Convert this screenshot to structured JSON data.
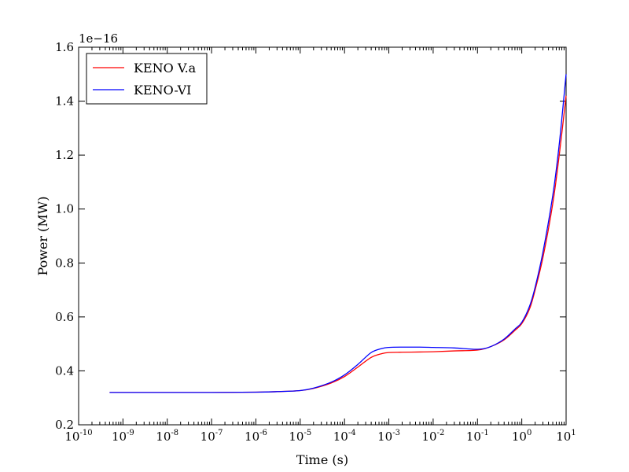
{
  "chart_data": {
    "type": "line",
    "xlabel": "Time (s)",
    "ylabel": "Power (MW)",
    "offset_label": "1e−16",
    "x_scale": "log",
    "xlim": [
      1e-10,
      10
    ],
    "ylim": [
      0.2,
      1.6
    ],
    "y_multiplier": 1e-16,
    "grid": false,
    "legend_position": "upper-left",
    "x_ticks": [
      {
        "value": 1e-10,
        "base": "10",
        "exp": "-10"
      },
      {
        "value": 1e-09,
        "base": "10",
        "exp": "-9"
      },
      {
        "value": 1e-08,
        "base": "10",
        "exp": "-8"
      },
      {
        "value": 1e-07,
        "base": "10",
        "exp": "-7"
      },
      {
        "value": 1e-06,
        "base": "10",
        "exp": "-6"
      },
      {
        "value": 1e-05,
        "base": "10",
        "exp": "-5"
      },
      {
        "value": 0.0001,
        "base": "10",
        "exp": "-4"
      },
      {
        "value": 0.001,
        "base": "10",
        "exp": "-3"
      },
      {
        "value": 0.01,
        "base": "10",
        "exp": "-2"
      },
      {
        "value": 0.1,
        "base": "10",
        "exp": "-1"
      },
      {
        "value": 1,
        "base": "10",
        "exp": "0"
      },
      {
        "value": 10,
        "base": "10",
        "exp": "1"
      }
    ],
    "y_ticks": [
      {
        "value": 0.2,
        "label": "0.2"
      },
      {
        "value": 0.4,
        "label": "0.4"
      },
      {
        "value": 0.6,
        "label": "0.6"
      },
      {
        "value": 0.8,
        "label": "0.8"
      },
      {
        "value": 1.0,
        "label": "1.0"
      },
      {
        "value": 1.2,
        "label": "1.2"
      },
      {
        "value": 1.4,
        "label": "1.4"
      },
      {
        "value": 1.6,
        "label": "1.6"
      }
    ],
    "series": [
      {
        "name": "KENO V.a",
        "color": "#ff0000",
        "x": [
          5e-10,
          1e-09,
          1e-08,
          1e-07,
          1e-06,
          3e-06,
          1e-05,
          2e-05,
          5e-05,
          0.0001,
          0.0002,
          0.0004,
          0.0007,
          0.001,
          0.002,
          0.005,
          0.01,
          0.03,
          0.1,
          0.2,
          0.4,
          0.7,
          1,
          1.5,
          2,
          3,
          5,
          7,
          10
        ],
        "y": [
          0.32,
          0.32,
          0.32,
          0.32,
          0.321,
          0.323,
          0.327,
          0.335,
          0.355,
          0.379,
          0.414,
          0.45,
          0.464,
          0.468,
          0.469,
          0.47,
          0.471,
          0.474,
          0.477,
          0.49,
          0.515,
          0.55,
          0.575,
          0.63,
          0.7,
          0.82,
          1.02,
          1.2,
          1.42
        ]
      },
      {
        "name": "KENO-VI",
        "color": "#0000ff",
        "x": [
          5e-10,
          1e-09,
          1e-08,
          1e-07,
          1e-06,
          3e-06,
          1e-05,
          2e-05,
          5e-05,
          0.0001,
          0.0002,
          0.0004,
          0.0007,
          0.001,
          0.002,
          0.005,
          0.01,
          0.03,
          0.1,
          0.2,
          0.4,
          0.7,
          1,
          1.5,
          2,
          3,
          5,
          7,
          10
        ],
        "y": [
          0.32,
          0.32,
          0.32,
          0.32,
          0.321,
          0.323,
          0.327,
          0.336,
          0.358,
          0.385,
          0.424,
          0.468,
          0.483,
          0.487,
          0.488,
          0.488,
          0.487,
          0.485,
          0.48,
          0.49,
          0.518,
          0.555,
          0.58,
          0.64,
          0.71,
          0.84,
          1.05,
          1.24,
          1.5
        ]
      }
    ]
  }
}
